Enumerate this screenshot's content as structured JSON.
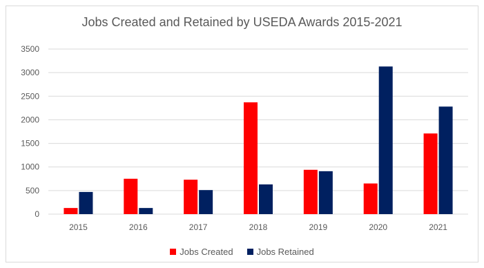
{
  "chart_data": {
    "type": "bar",
    "title": "Jobs Created and Retained by USEDA Awards 2015-2021",
    "xlabel": "",
    "ylabel": "",
    "categories": [
      "2015",
      "2016",
      "2017",
      "2018",
      "2019",
      "2020",
      "2021"
    ],
    "series": [
      {
        "name": "Jobs Created",
        "color": "#ff0000",
        "values": [
          130,
          750,
          730,
          2370,
          940,
          650,
          1710
        ]
      },
      {
        "name": "Jobs Retained",
        "color": "#002060",
        "values": [
          470,
          130,
          510,
          630,
          910,
          3130,
          2280
        ]
      }
    ],
    "ylim": [
      0,
      3500
    ],
    "yticks": [
      "0",
      "500",
      "1000",
      "1500",
      "2000",
      "2500",
      "3000",
      "3500"
    ],
    "grid": true,
    "legend_position": "bottom"
  }
}
